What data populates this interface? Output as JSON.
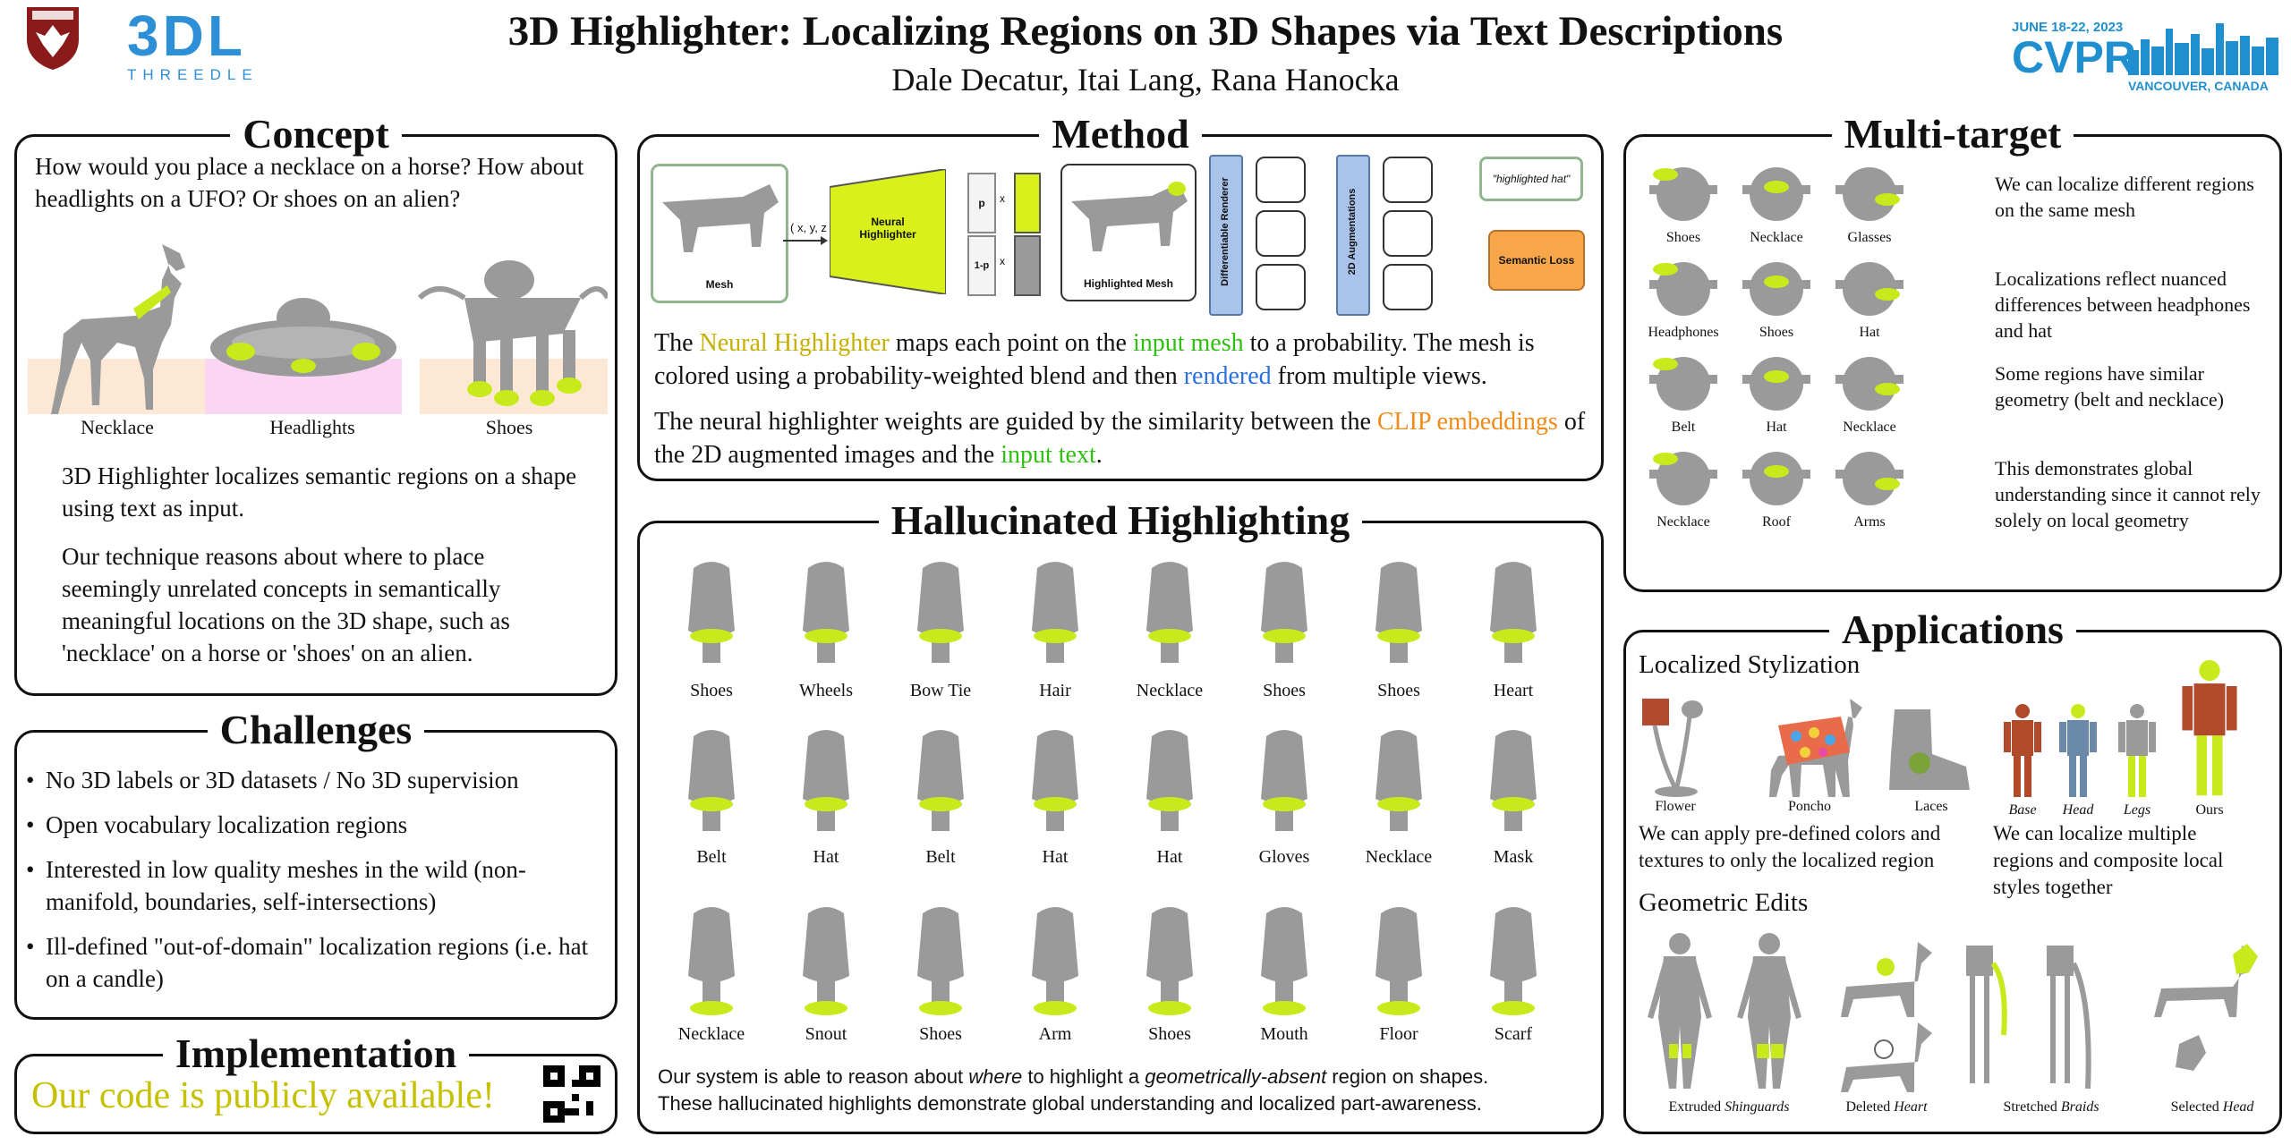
{
  "header": {
    "title": "3D Highlighter: Localizing Regions on 3D Shapes via Text Descriptions",
    "authors": "Dale Decatur, Itai Lang, Rana Hanocka",
    "lab_logo_text": "3DL",
    "lab_logo_sub": "THREEDLE",
    "conf_dates": "JUNE 18-22, 2023",
    "conf_name": "CVPR",
    "conf_location": "VANCOUVER, CANADA"
  },
  "concept": {
    "title": "Concept",
    "question": "How would you place a necklace on a horse? How about headlights on a UFO? Or shoes on an alien?",
    "captions": [
      "Necklace",
      "Headlights",
      "Shoes"
    ],
    "para1": "3D Highlighter localizes semantic regions on a shape using text as input.",
    "para2": "Our technique reasons about where to place seemingly unrelated concepts in semantically meaningful locations on the 3D shape, such as 'necklace' on a horse or 'shoes' on an alien."
  },
  "challenges": {
    "title": "Challenges",
    "items": [
      "No 3D labels or 3D datasets / No 3D supervision",
      "Open vocabulary localization regions",
      "Interested in low quality meshes in the wild (non-manifold, boundaries, self-intersections)",
      "Ill-defined \"out-of-domain\" localization regions (i.e. hat on a candle)"
    ]
  },
  "implementation": {
    "title": "Implementation",
    "text": "Our code is publicly available!"
  },
  "method": {
    "title": "Method",
    "diagram": {
      "mesh": "Mesh",
      "xyz": "( x, y, z )",
      "neural_highlighter": "Neural Highlighter",
      "p": "p",
      "one_minus_p": "1-p",
      "x": "x",
      "highlighted_mesh": "Highlighted Mesh",
      "renderer": "Differentiable Renderer",
      "augment": "2D Augmentations",
      "prompt": "\"highlighted hat\"",
      "loss": "Semantic Loss"
    },
    "p1": {
      "a": "The ",
      "b": "Neural Highlighter",
      "c": " maps each point on the ",
      "d": "input mesh",
      "e": " to a probability. The mesh is colored using a probability-weighted blend and then ",
      "f": "rendered",
      "g": " from multiple views."
    },
    "p2": {
      "a": "The neural highlighter weights are guided by the similarity between the ",
      "b": "CLIP embeddings",
      "c": " of the 2D augmented images and the ",
      "d": "input text",
      "e": "."
    }
  },
  "hallucinated": {
    "title": "Hallucinated Highlighting",
    "row1": [
      "Shoes",
      "Wheels",
      "Bow Tie",
      "Hair",
      "Necklace",
      "Shoes",
      "Shoes",
      "Heart"
    ],
    "row2": [
      "Belt",
      "Hat",
      "Belt",
      "Hat",
      "Hat",
      "Gloves",
      "Necklace",
      "Mask"
    ],
    "row3": [
      "Necklace",
      "Snout",
      "Shoes",
      "Arm",
      "Shoes",
      "Mouth",
      "Floor",
      "Scarf"
    ],
    "caption_a": "Our system is able to reason about ",
    "caption_where": "where",
    "caption_b": " to highlight a ",
    "caption_geo": "geometrically-absent",
    "caption_c": " region on shapes.",
    "caption_line2": "These hallucinated highlights demonstrate global understanding and localized part-awareness."
  },
  "multitarget": {
    "title": "Multi-target",
    "rows": [
      {
        "labels": [
          "Shoes",
          "Necklace",
          "Glasses"
        ],
        "text": "We can localize different regions on the same mesh"
      },
      {
        "labels": [
          "Headphones",
          "Shoes",
          "Hat"
        ],
        "text": "Localizations reflect nuanced differences between headphones and hat"
      },
      {
        "labels": [
          "Belt",
          "Hat",
          "Necklace"
        ],
        "text": "Some regions have similar geometry (belt and necklace)"
      },
      {
        "labels": [
          "Necklace",
          "Roof",
          "Arms"
        ],
        "text": "This demonstrates global understanding since it cannot rely solely on local geometry"
      }
    ]
  },
  "applications": {
    "title": "Applications",
    "stylization_title": "Localized Stylization",
    "styl_captions": [
      "Flower",
      "Poncho",
      "Laces"
    ],
    "styl_text": "We can apply pre-defined colors and textures to only the localized region",
    "composite_captions": [
      "Base",
      "Head",
      "Legs",
      "Ours"
    ],
    "composite_text": "We can localize multiple regions and composite local styles together",
    "geometric_title": "Geometric Edits",
    "geo_captions": [
      {
        "a": "Extruded ",
        "b": "Shinguards"
      },
      {
        "a": "Deleted ",
        "b": "Heart"
      },
      {
        "a": "Stretched ",
        "b": "Braids"
      },
      {
        "a": "Selected ",
        "b": "Head"
      }
    ]
  },
  "colors": {
    "highlight": "#c8ea1a",
    "cvpr_blue": "#1f8fd0",
    "logo_blue": "#2d8fd6",
    "crest_red": "#8b1a1a"
  }
}
